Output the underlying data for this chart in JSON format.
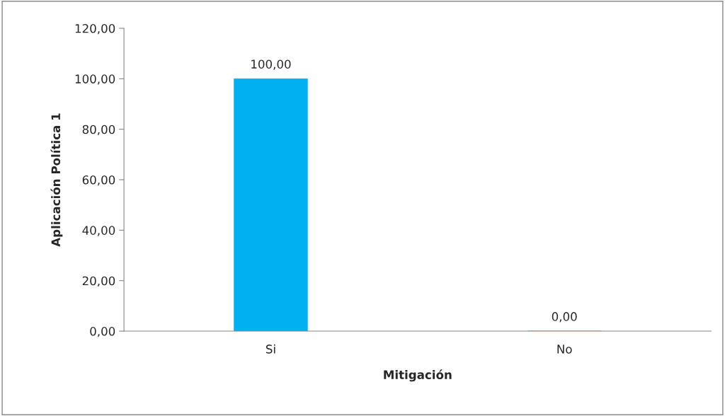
{
  "chart_data": {
    "type": "bar",
    "xlabel": "Mitigación",
    "ylabel": "Aplicación Política 1",
    "categories": [
      "Si",
      "No"
    ],
    "values": [
      100,
      0
    ],
    "color": "#00b0f0",
    "value_labels": [
      "100,00",
      "0,00"
    ],
    "ylim": [
      0,
      120
    ],
    "yticks": [
      {
        "value": 0,
        "label": "0,00"
      },
      {
        "value": 20,
        "label": "20,00"
      },
      {
        "value": 40,
        "label": "40,00"
      },
      {
        "value": 60,
        "label": "60,00"
      },
      {
        "value": 80,
        "label": "80,00"
      },
      {
        "value": 100,
        "label": "100,00"
      },
      {
        "value": 120,
        "label": "120,00"
      }
    ],
    "grid": false,
    "legend": false
  }
}
